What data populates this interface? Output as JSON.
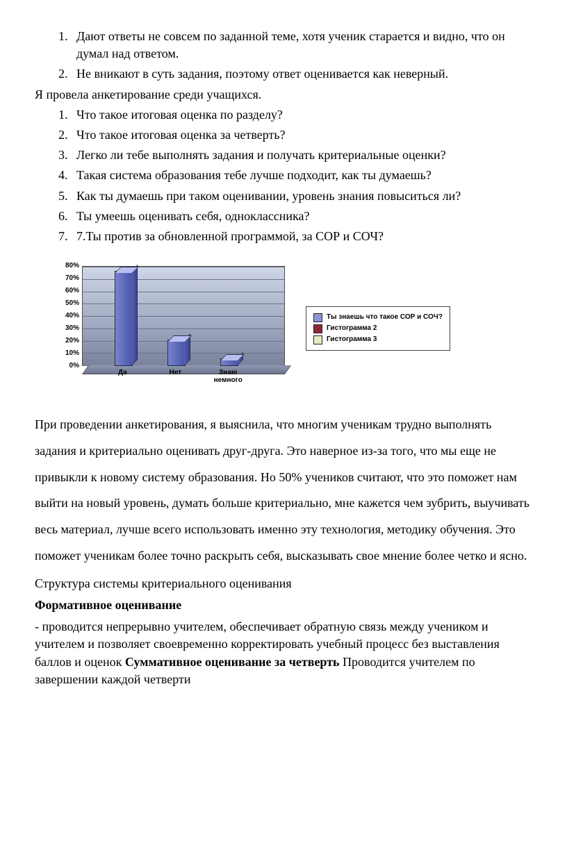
{
  "list1": [
    "Дают ответы не совсем по заданной теме, хотя ученик старается и видно,  что он думал над ответом.",
    "Не вникают в суть задания, поэтому ответ оценивается как неверный."
  ],
  "intro": "Я провела анкетирование среди учащихся.",
  "questions": [
    "Что такое итоговая оценка по разделу?",
    "Что такое итоговая оценка за четверть?",
    "Легко ли тебе выполнять задания и получать критериальные оценки?",
    "Такая система образования тебе лучше подходит, как ты думаешь?",
    "Как ты думаешь при таком оценивании, уровень знания повыситься ли?",
    "Ты умеешь оценивать себя, одноклассника?",
    "7.Ты против за обновленной программой, за СОР и СОЧ?"
  ],
  "chart": {
    "type": "bar-3d",
    "categories": [
      "Да",
      "Нет",
      "Знаю немного"
    ],
    "values": [
      75,
      20,
      5
    ],
    "bar_color_front": "#7883d0",
    "bar_color_side": "#4a55a8",
    "bar_color_top": "#b8bfef",
    "background_gradient": [
      "#cfd6e8",
      "#7b839c"
    ],
    "grid_color": "#6c7288",
    "ylim": [
      0,
      80
    ],
    "ytick_step": 10,
    "ytick_suffix": "%",
    "label_fontsize": 10,
    "label_fontweight": "bold",
    "bar_positions_pct": [
      16,
      42,
      68
    ],
    "legend": {
      "items": [
        {
          "label": "Ты знаешь что такое СОР и СОЧ?",
          "color": "#8a95d6"
        },
        {
          "label": "Гистограмма 2",
          "color": "#8b2838"
        },
        {
          "label": "Гистограмма 3",
          "color": "#e8eac0"
        }
      ],
      "border_color": "#444"
    }
  },
  "para1": "При проведении анкетирования, я выяснила, что многим ученикам  трудно выполнять задания  и критериально оценивать друг-друга. Это наверное из-за того, что мы еще не привыкли к новому систему образования. Но 50% учеников считают, что это поможет нам выйти на новый уровень, думать больше критериально, мне кажется чем зубрить, выучивать весь материал, лучше всего использовать именно эту технология, методику обучения. Это поможет ученикам более точно раскрыть себя, высказывать свое мнение более четко и ясно.",
  "para2": "Структура системы критериального оценивания",
  "para3_bold": "Формативное оценивание",
  "para4_pre": "- проводится непрерывно учителем, обеспечивает обратную связь между учеником и учителем и позволяет своевременно корректировать учебный процесс без выставления баллов и оценок ",
  "para4_bold": "Суммативное оценивание за четверть",
  "para4_post": " Проводится учителем по завершении каждой четверти"
}
